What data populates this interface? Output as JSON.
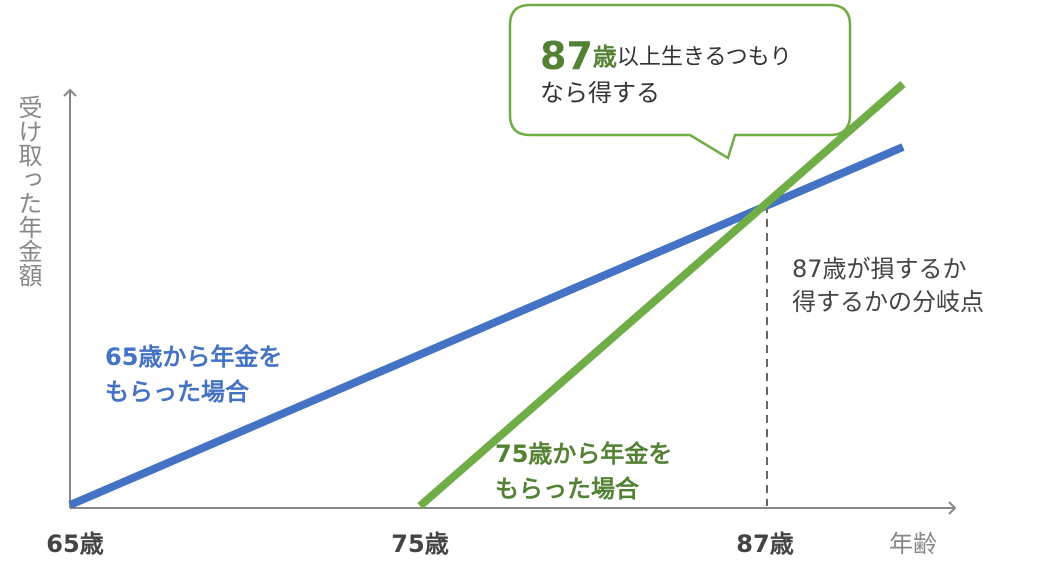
{
  "axes": {
    "y_label": "受け取った年金額",
    "x_label": "年齢",
    "x_ticks": [
      "65歳",
      "75歳",
      "87歳"
    ]
  },
  "lines": [
    {
      "label": [
        "65歳から年金を",
        "もらった場合"
      ]
    },
    {
      "label": [
        "75歳から年金を",
        "もらった場合"
      ]
    }
  ],
  "breakeven_note": [
    "87歳が損するか",
    "得するかの分岐点"
  ],
  "callout": {
    "number": "87",
    "unit": "歳",
    "rest": "以上生きるつもり",
    "line2": "なら得する"
  }
}
